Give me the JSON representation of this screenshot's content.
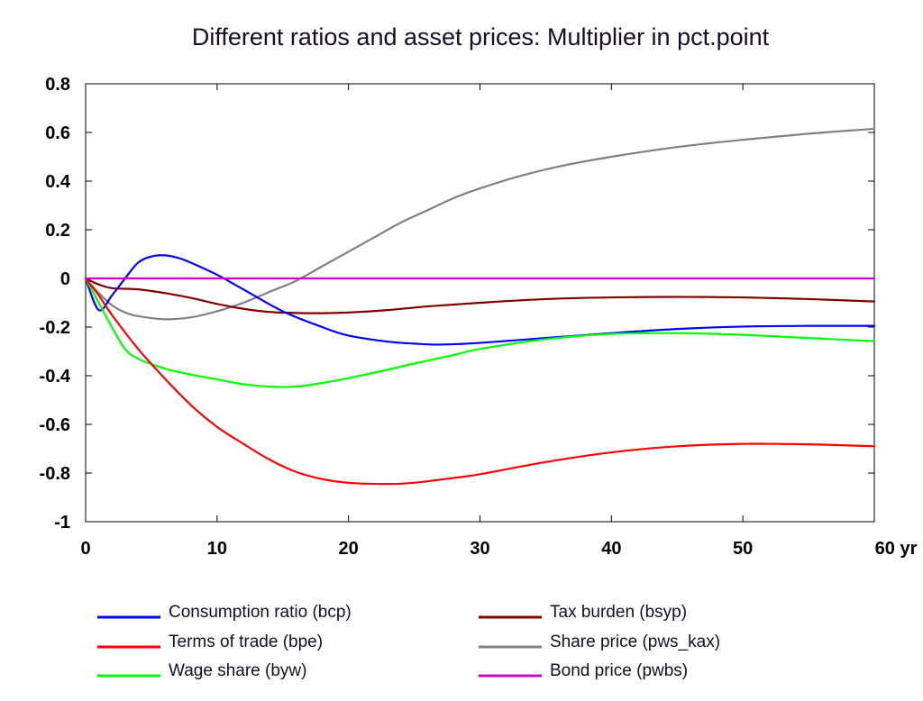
{
  "chart_data": {
    "type": "line",
    "title": "Different ratios and asset prices: Multiplier in pct.point",
    "x_unit": "yr",
    "xlim": [
      0,
      60
    ],
    "ylim": [
      -1,
      0.8
    ],
    "x_ticks": [
      0,
      10,
      20,
      30,
      40,
      50,
      60
    ],
    "x_tick_labels": [
      "0",
      "10",
      "20",
      "30",
      "40",
      "50",
      "60 yr"
    ],
    "y_ticks": [
      -1,
      -0.8,
      -0.6,
      -0.4,
      -0.2,
      0,
      0.2,
      0.4,
      0.6,
      0.8
    ],
    "y_tick_labels": [
      "-1",
      "-0.8",
      "-0.6",
      "-0.4",
      "-0.2",
      "0",
      "0.2",
      "0.4",
      "0.6",
      "0.8"
    ],
    "grid": false,
    "legend_position": "bottom",
    "series": [
      {
        "name": "Consumption ratio (bcp)",
        "color": "#0000ff",
        "points": [
          [
            0,
            0
          ],
          [
            1,
            -0.13
          ],
          [
            2,
            -0.07
          ],
          [
            3,
            0.0
          ],
          [
            4,
            0.065
          ],
          [
            5,
            0.09
          ],
          [
            6,
            0.095
          ],
          [
            7,
            0.085
          ],
          [
            8,
            0.065
          ],
          [
            10,
            0.015
          ],
          [
            12,
            -0.045
          ],
          [
            15,
            -0.135
          ],
          [
            18,
            -0.2
          ],
          [
            20,
            -0.235
          ],
          [
            23,
            -0.26
          ],
          [
            25,
            -0.268
          ],
          [
            27,
            -0.272
          ],
          [
            30,
            -0.265
          ],
          [
            35,
            -0.245
          ],
          [
            40,
            -0.225
          ],
          [
            45,
            -0.208
          ],
          [
            50,
            -0.198
          ],
          [
            55,
            -0.195
          ],
          [
            60,
            -0.195
          ]
        ]
      },
      {
        "name": "Terms of trade (bpe)",
        "color": "#ff0000",
        "points": [
          [
            0,
            0
          ],
          [
            1,
            -0.07
          ],
          [
            2,
            -0.15
          ],
          [
            4,
            -0.29
          ],
          [
            6,
            -0.41
          ],
          [
            8,
            -0.52
          ],
          [
            10,
            -0.61
          ],
          [
            12,
            -0.68
          ],
          [
            14,
            -0.745
          ],
          [
            16,
            -0.795
          ],
          [
            18,
            -0.825
          ],
          [
            20,
            -0.84
          ],
          [
            23,
            -0.845
          ],
          [
            25,
            -0.84
          ],
          [
            28,
            -0.82
          ],
          [
            30,
            -0.805
          ],
          [
            35,
            -0.755
          ],
          [
            40,
            -0.715
          ],
          [
            45,
            -0.69
          ],
          [
            50,
            -0.68
          ],
          [
            55,
            -0.682
          ],
          [
            60,
            -0.69
          ]
        ]
      },
      {
        "name": "Wage share (byw)",
        "color": "#00ff00",
        "points": [
          [
            0,
            0
          ],
          [
            1,
            -0.1
          ],
          [
            2,
            -0.2
          ],
          [
            3,
            -0.29
          ],
          [
            4,
            -0.33
          ],
          [
            6,
            -0.37
          ],
          [
            8,
            -0.395
          ],
          [
            10,
            -0.415
          ],
          [
            12,
            -0.435
          ],
          [
            14,
            -0.445
          ],
          [
            16,
            -0.445
          ],
          [
            18,
            -0.43
          ],
          [
            20,
            -0.41
          ],
          [
            23,
            -0.375
          ],
          [
            25,
            -0.35
          ],
          [
            28,
            -0.315
          ],
          [
            30,
            -0.29
          ],
          [
            35,
            -0.25
          ],
          [
            40,
            -0.228
          ],
          [
            45,
            -0.225
          ],
          [
            50,
            -0.232
          ],
          [
            55,
            -0.245
          ],
          [
            60,
            -0.258
          ]
        ]
      },
      {
        "name": "Tax burden (bsyp)",
        "color": "#800000",
        "points": [
          [
            0,
            0
          ],
          [
            1,
            -0.025
          ],
          [
            2,
            -0.04
          ],
          [
            4,
            -0.045
          ],
          [
            6,
            -0.06
          ],
          [
            8,
            -0.08
          ],
          [
            10,
            -0.105
          ],
          [
            12,
            -0.125
          ],
          [
            14,
            -0.138
          ],
          [
            16,
            -0.142
          ],
          [
            18,
            -0.143
          ],
          [
            20,
            -0.14
          ],
          [
            23,
            -0.13
          ],
          [
            26,
            -0.115
          ],
          [
            30,
            -0.1
          ],
          [
            35,
            -0.085
          ],
          [
            40,
            -0.078
          ],
          [
            45,
            -0.076
          ],
          [
            50,
            -0.078
          ],
          [
            55,
            -0.085
          ],
          [
            60,
            -0.095
          ]
        ]
      },
      {
        "name": "Share price (pws_kax)",
        "color": "#808080",
        "points": [
          [
            0,
            0
          ],
          [
            1,
            -0.06
          ],
          [
            2,
            -0.11
          ],
          [
            3,
            -0.14
          ],
          [
            4,
            -0.155
          ],
          [
            6,
            -0.168
          ],
          [
            8,
            -0.16
          ],
          [
            10,
            -0.135
          ],
          [
            12,
            -0.1
          ],
          [
            14,
            -0.055
          ],
          [
            16,
            -0.01
          ],
          [
            18,
            0.05
          ],
          [
            20,
            0.11
          ],
          [
            22,
            0.17
          ],
          [
            24,
            0.23
          ],
          [
            26,
            0.28
          ],
          [
            28,
            0.33
          ],
          [
            30,
            0.37
          ],
          [
            33,
            0.42
          ],
          [
            36,
            0.46
          ],
          [
            40,
            0.5
          ],
          [
            45,
            0.54
          ],
          [
            50,
            0.57
          ],
          [
            55,
            0.595
          ],
          [
            60,
            0.615
          ]
        ]
      },
      {
        "name": "Bond price (pwbs)",
        "color": "#cc00cc",
        "points": [
          [
            0,
            0
          ],
          [
            60,
            0
          ]
        ]
      }
    ]
  }
}
